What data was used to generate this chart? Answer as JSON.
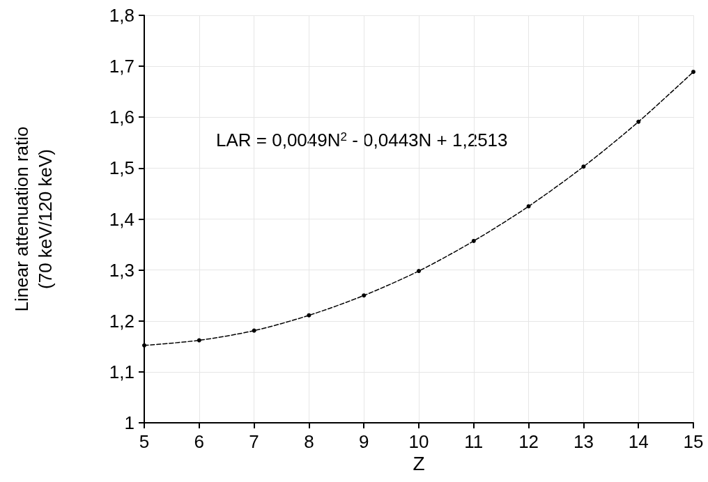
{
  "chart_data": {
    "type": "line",
    "xlabel": "Z",
    "ylabel": "Linear attenuation ratio\n(70 keV/120 keV)",
    "x": [
      5,
      6,
      7,
      8,
      9,
      10,
      11,
      12,
      13,
      14,
      15
    ],
    "series": [
      {
        "color": "#000000",
        "values": [
          1.152,
          1.162,
          1.181,
          1.211,
          1.25,
          1.298,
          1.357,
          1.425,
          1.503,
          1.591,
          1.689
        ]
      }
    ],
    "xlim": [
      5,
      15
    ],
    "xticks": [
      5,
      6,
      7,
      8,
      9,
      10,
      11,
      12,
      13,
      14,
      15
    ],
    "ylim": [
      1,
      1.8
    ],
    "yticks": [
      1,
      {
        "value": 1.1,
        "label": "1,1"
      },
      {
        "value": 1.2,
        "label": "1,2"
      },
      {
        "value": 1.3,
        "label": "1,3"
      },
      {
        "value": 1.4,
        "label": "1,4"
      },
      {
        "value": 1.5,
        "label": "1,5"
      },
      {
        "value": 1.6,
        "label": "1,6"
      },
      {
        "value": 1.7,
        "label": "1,7"
      },
      {
        "value": 1.8,
        "label": "1,8"
      }
    ],
    "annotations": [
      "LAR = 0,0049N$^{2}$ - 0,0443N + 1,2513"
    ],
    "grid": true,
    "marker": "circle",
    "line_style": "dashed"
  }
}
